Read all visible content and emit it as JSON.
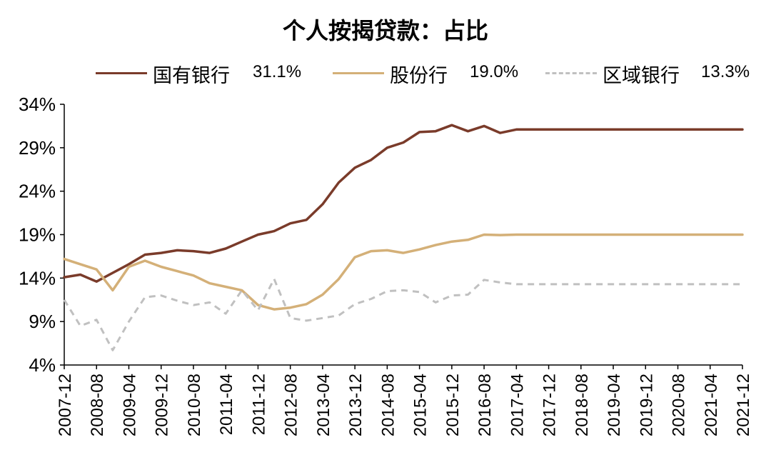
{
  "chart_data": {
    "type": "line",
    "title": "个人按揭贷款：占比",
    "xlabel": "",
    "ylabel": "",
    "ylim": [
      4,
      34
    ],
    "yticks": [
      "34%",
      "29%",
      "24%",
      "19%",
      "14%",
      "9%",
      "4%"
    ],
    "ytick_values": [
      34,
      29,
      24,
      19,
      14,
      9,
      4
    ],
    "x": [
      "2007-12",
      "2008-04",
      "2008-08",
      "2008-12",
      "2009-04",
      "2009-08",
      "2009-12",
      "2010-04",
      "2010-08",
      "2010-12",
      "2011-04",
      "2011-08",
      "2011-12",
      "2012-04",
      "2012-08",
      "2012-12",
      "2013-04",
      "2013-08",
      "2013-12",
      "2014-04",
      "2014-08",
      "2014-12",
      "2015-04",
      "2015-08",
      "2015-12",
      "2016-04",
      "2016-08",
      "2016-12",
      "2017-04",
      "2017-08",
      "2017-12",
      "2018-04",
      "2018-08",
      "2018-12",
      "2019-04",
      "2019-08",
      "2019-12",
      "2020-04",
      "2020-08",
      "2020-12",
      "2021-04",
      "2021-08",
      "2021-12"
    ],
    "xticks": [
      "2007-12",
      "2008-08",
      "2009-04",
      "2009-12",
      "2010-08",
      "2011-04",
      "2011-12",
      "2012-08",
      "2013-04",
      "2013-12",
      "2014-08",
      "2015-04",
      "2015-12",
      "2016-08",
      "2017-04",
      "2017-12",
      "2018-08",
      "2019-04",
      "2019-12",
      "2020-08",
      "2021-04",
      "2021-12"
    ],
    "series": [
      {
        "name": "国有银行",
        "legend_value": "31.1%",
        "color": "#7a3b2a",
        "style": "solid",
        "values": [
          14.1,
          14.4,
          13.6,
          14.6,
          15.6,
          16.7,
          16.9,
          17.2,
          17.1,
          16.9,
          17.4,
          18.2,
          19.0,
          19.4,
          20.3,
          20.7,
          22.5,
          25.0,
          26.7,
          27.6,
          29.0,
          29.6,
          30.8,
          30.9,
          31.6,
          30.9,
          31.5,
          30.7,
          31.1,
          31.1,
          31.1,
          31.1,
          31.1,
          31.1,
          31.1,
          31.1,
          31.1,
          31.1,
          31.1,
          31.1,
          31.1,
          31.1,
          31.1
        ]
      },
      {
        "name": "股份行",
        "legend_value": "19.0%",
        "color": "#d4b078",
        "style": "solid",
        "values": [
          16.2,
          15.6,
          15.0,
          12.6,
          15.3,
          16.0,
          15.3,
          14.8,
          14.3,
          13.4,
          13.0,
          12.6,
          10.9,
          10.4,
          10.6,
          11.0,
          12.1,
          13.9,
          16.4,
          17.1,
          17.2,
          16.9,
          17.3,
          17.8,
          18.2,
          18.4,
          19.0,
          18.95,
          19.0,
          19.0,
          19.0,
          19.0,
          19.0,
          19.0,
          19.0,
          19.0,
          19.0,
          19.0,
          19.0,
          19.0,
          19.0,
          19.0,
          19.0
        ]
      },
      {
        "name": "区域银行",
        "legend_value": "13.3%",
        "color": "#c0c0c0",
        "style": "dashed",
        "values": [
          11.5,
          8.5,
          9.2,
          5.7,
          9.0,
          11.8,
          12.0,
          11.4,
          10.9,
          11.2,
          9.9,
          12.6,
          10.3,
          13.9,
          9.4,
          9.1,
          9.4,
          9.7,
          11.0,
          11.6,
          12.5,
          12.6,
          12.4,
          11.2,
          12.0,
          12.1,
          13.8,
          13.5,
          13.3,
          13.3,
          13.3,
          13.3,
          13.3,
          13.3,
          13.3,
          13.3,
          13.3,
          13.3,
          13.3,
          13.3,
          13.3,
          13.3,
          13.3
        ]
      }
    ],
    "legend_position": "top",
    "grid": false
  }
}
